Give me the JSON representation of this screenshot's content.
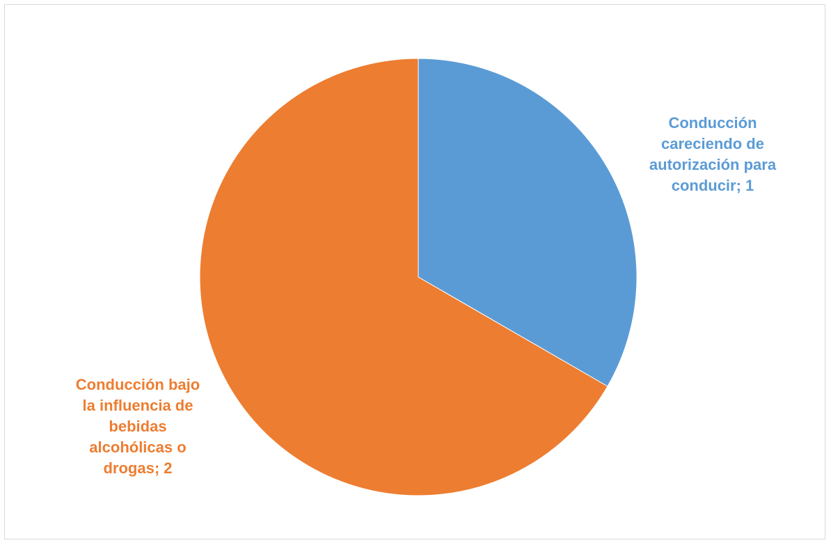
{
  "chart_data": {
    "type": "pie",
    "title": "",
    "categories": [
      "Conducción careciendo de autorización para conducir",
      "Conducción bajo la influencia de bebidas alcohólicas o drogas"
    ],
    "values": [
      1,
      2
    ],
    "colors": [
      "#5b9bd5",
      "#ed7d31"
    ],
    "data_labels": [
      {
        "lines": [
          "Conducción",
          "careciendo de",
          "autorización para",
          "conducir; 1"
        ]
      },
      {
        "lines": [
          "Conducción bajo",
          "la influencia de",
          "bebidas",
          "alcohólicas o",
          "drogas; 2"
        ]
      }
    ],
    "legend": "none",
    "start_angle_deg": 0,
    "direction": "clockwise"
  }
}
